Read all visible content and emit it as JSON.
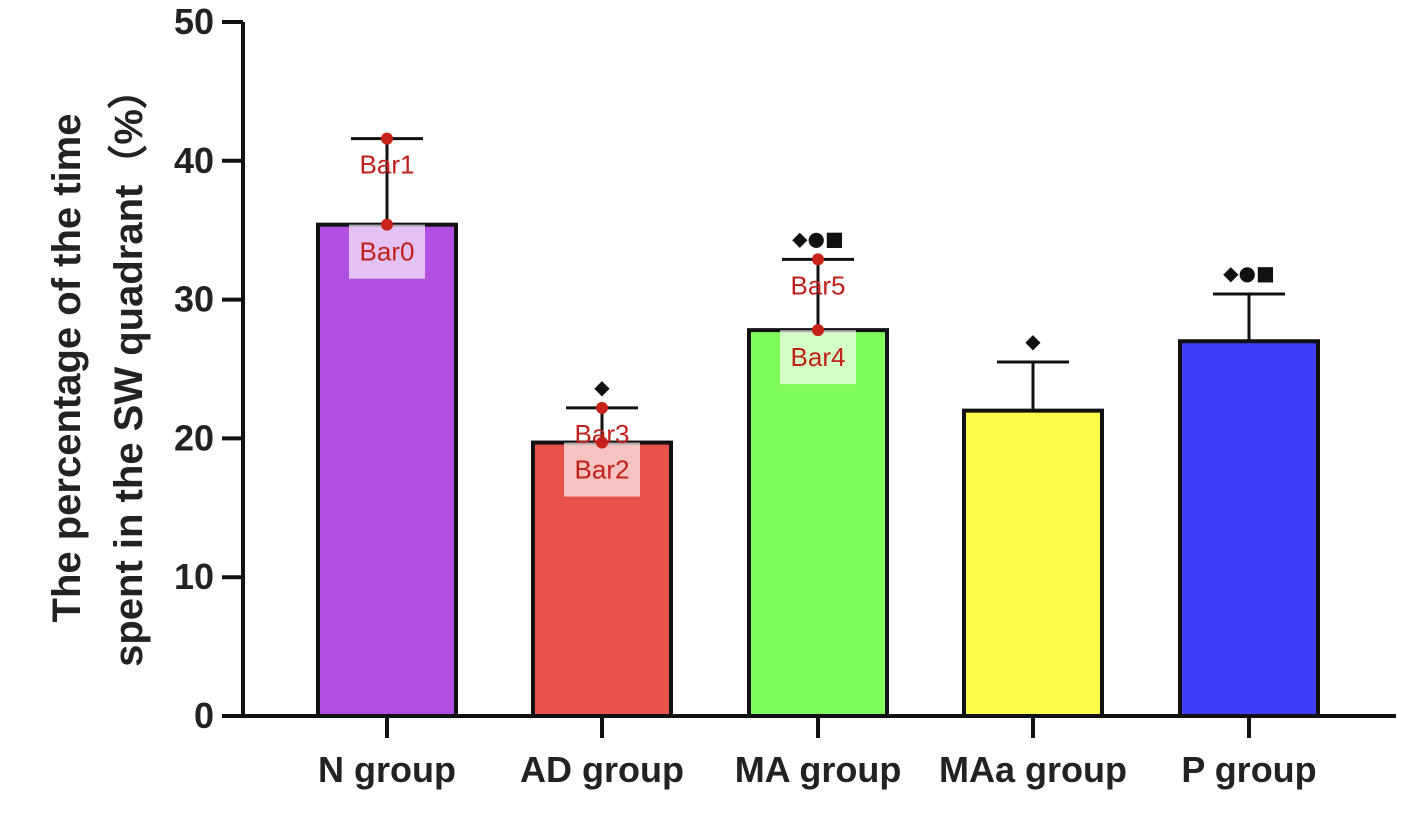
{
  "chart_data": {
    "type": "bar",
    "title": "",
    "xlabel": "",
    "ylabel_lines": [
      "The percentage of the time",
      "spent in the SW quadrant（%）"
    ],
    "ylim": [
      0,
      50
    ],
    "yticks": [
      0,
      10,
      20,
      30,
      40,
      50
    ],
    "grid": false,
    "categories": [
      "N group",
      "AD group",
      "MA group",
      "MAa group",
      "P group"
    ],
    "values": [
      35.4,
      19.7,
      27.8,
      22.0,
      27.0
    ],
    "error_upper": [
      41.6,
      22.2,
      32.9,
      25.5,
      30.4
    ],
    "significance": [
      "",
      "◆",
      "◆●■",
      "◆",
      "◆●■"
    ],
    "colors": [
      "#b04fe0",
      "#e8524a",
      "#80fc5a",
      "#fdfc4a",
      "#3f3ff8"
    ],
    "annotations": [
      {
        "label": "Bar0",
        "value": 35.4,
        "category_index": 0
      },
      {
        "label": "Bar1",
        "value": 41.6,
        "category_index": 0
      },
      {
        "label": "Bar2",
        "value": 19.7,
        "category_index": 1
      },
      {
        "label": "Bar3",
        "value": 22.2,
        "category_index": 1
      },
      {
        "label": "Bar4",
        "value": 27.8,
        "category_index": 2
      },
      {
        "label": "Bar5",
        "value": 32.9,
        "category_index": 2
      }
    ]
  }
}
